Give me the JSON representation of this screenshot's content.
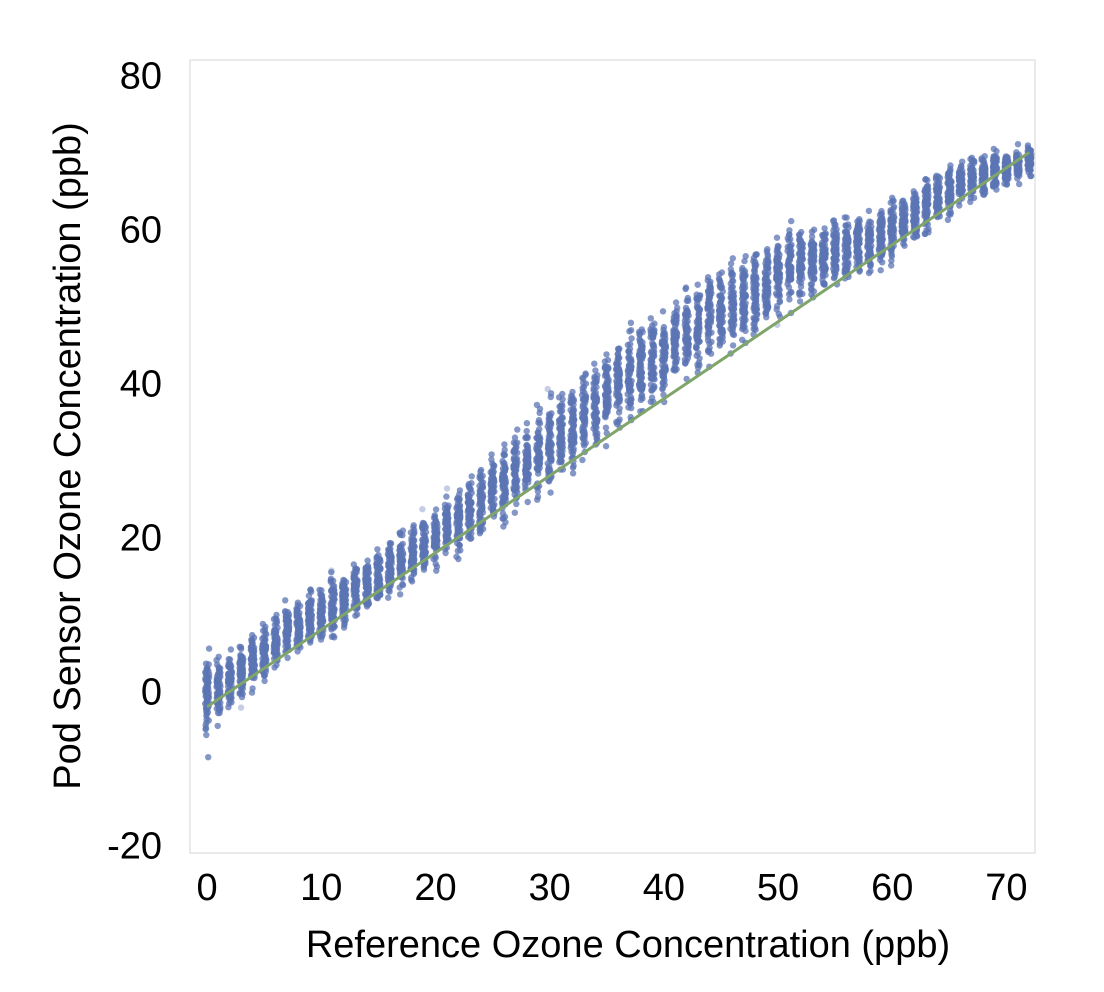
{
  "chart_data": {
    "type": "scatter",
    "xlabel": "Reference Ozone Concentration (ppb)",
    "ylabel": "Pod Sensor Ozone Concentration (ppb)",
    "xlim": [
      -1.5,
      72.5
    ],
    "ylim": [
      -21,
      82
    ],
    "x_ticks": [
      0,
      10,
      20,
      30,
      40,
      50,
      60,
      70
    ],
    "y_ticks": [
      -20,
      0,
      20,
      40,
      60,
      80
    ],
    "grid": false,
    "legend": "none",
    "colors": {
      "points": "#5b74b4",
      "fit_line": "#7fa56a",
      "frame": "#e3e3e3"
    },
    "fit_line": {
      "x": [
        0,
        72
      ],
      "y": [
        -2,
        70
      ]
    },
    "point_bands": {
      "description_of_form": "x, y_center, y_spread",
      "x": [
        0,
        1,
        2,
        3,
        4,
        5,
        6,
        7,
        8,
        9,
        10,
        11,
        12,
        13,
        14,
        15,
        16,
        17,
        18,
        19,
        20,
        21,
        22,
        23,
        24,
        25,
        26,
        27,
        28,
        29,
        30,
        31,
        32,
        33,
        34,
        35,
        36,
        37,
        38,
        39,
        40,
        41,
        42,
        43,
        44,
        45,
        46,
        47,
        48,
        49,
        50,
        51,
        52,
        53,
        54,
        55,
        56,
        57,
        58,
        59,
        60,
        61,
        62,
        63,
        64,
        65,
        66,
        67,
        68,
        69,
        70,
        71,
        72
      ],
      "y_center": [
        -1,
        0,
        1.5,
        2.5,
        4,
        5,
        6,
        7.5,
        8.5,
        9.5,
        10,
        11,
        12,
        13,
        14,
        15,
        16,
        17,
        18,
        19,
        20,
        21,
        22,
        23.5,
        24.5,
        26,
        27,
        28.5,
        30,
        31,
        32,
        33.5,
        34.5,
        36,
        37,
        38.5,
        40,
        41,
        42,
        43,
        44,
        45.5,
        46.5,
        47.5,
        48.5,
        49.5,
        50.5,
        51,
        52,
        53,
        54,
        55,
        55.5,
        56,
        56.5,
        57,
        57.5,
        58,
        58.5,
        59,
        60,
        61,
        62,
        63,
        64,
        65,
        66,
        66.5,
        67,
        67.5,
        68,
        68.5,
        69
      ],
      "y_spread": [
        9,
        6,
        5,
        5,
        5,
        5,
        5,
        5,
        5,
        5,
        5,
        5,
        5,
        5,
        5,
        5,
        5,
        5,
        5,
        5,
        5.5,
        5.5,
        6,
        6,
        6.5,
        7,
        7,
        7.5,
        7.5,
        8,
        8,
        8,
        8,
        8,
        8,
        8,
        8,
        8,
        8,
        8,
        8,
        8,
        8,
        8,
        8,
        8,
        8,
        7.5,
        7.5,
        7,
        7,
        7,
        7,
        7,
        6.5,
        6.5,
        6,
        6,
        6,
        5.5,
        5.5,
        5,
        5,
        5,
        4.5,
        4.5,
        4,
        4,
        3.5,
        3.5,
        3,
        3,
        3
      ]
    }
  }
}
